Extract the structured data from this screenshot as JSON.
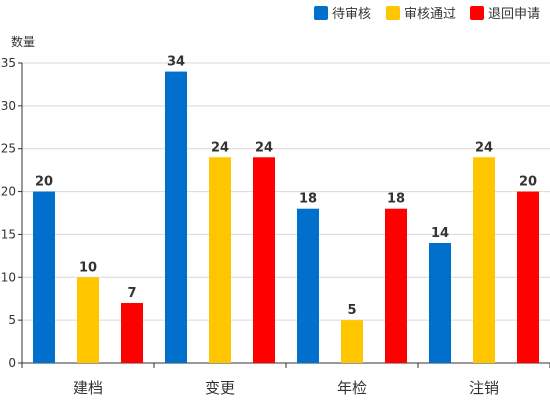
{
  "chart_data": {
    "type": "bar",
    "title": "",
    "xlabel": "",
    "ylabel": "数量",
    "ylim": [
      0,
      35
    ],
    "yticks": [
      0,
      5,
      10,
      15,
      20,
      25,
      30,
      35
    ],
    "grid": true,
    "legend_position": "top-right",
    "categories": [
      "建档",
      "变更",
      "年检",
      "注销"
    ],
    "series": [
      {
        "name": "待审核",
        "color": "#0070CC",
        "values": [
          20,
          34,
          18,
          14
        ]
      },
      {
        "name": "审核通过",
        "color": "#FFC600",
        "values": [
          10,
          24,
          5,
          24
        ]
      },
      {
        "name": "退回申请",
        "color": "#FF0000",
        "values": [
          7,
          24,
          18,
          20
        ]
      }
    ]
  }
}
